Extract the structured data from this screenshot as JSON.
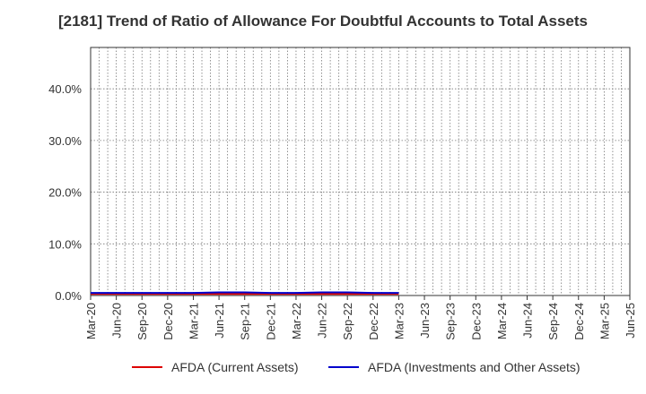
{
  "chart_data": {
    "type": "line",
    "title": "[2181]  Trend of Ratio of Allowance For Doubtful Accounts to Total Assets",
    "xlabel": "",
    "ylabel": "",
    "x_ticks": [
      "Mar-20",
      "Jun-20",
      "Sep-20",
      "Dec-20",
      "Mar-21",
      "Jun-21",
      "Sep-21",
      "Dec-21",
      "Mar-22",
      "Jun-22",
      "Sep-22",
      "Dec-22",
      "Mar-23",
      "Jun-23",
      "Sep-23",
      "Dec-23",
      "Mar-24",
      "Jun-24",
      "Sep-24",
      "Dec-24",
      "Mar-25",
      "Jun-25"
    ],
    "y_ticks": [
      "0.0%",
      "10.0%",
      "20.0%",
      "30.0%",
      "40.0%"
    ],
    "y_tick_values": [
      0,
      10,
      20,
      30,
      40
    ],
    "ylim": [
      0,
      48
    ],
    "grid": true,
    "legend_position": "bottom",
    "x": [
      "Mar-20",
      "Jun-20",
      "Sep-20",
      "Dec-20",
      "Mar-21",
      "Jun-21",
      "Sep-21",
      "Dec-21",
      "Mar-22",
      "Jun-22",
      "Sep-22",
      "Dec-22",
      "Mar-23"
    ],
    "series": [
      {
        "name": "AFDA (Current Assets)",
        "color": "#dd0000",
        "values": [
          0.3,
          0.3,
          0.3,
          0.3,
          0.3,
          0.3,
          0.3,
          0.3,
          0.3,
          0.3,
          0.3,
          0.3,
          0.3
        ]
      },
      {
        "name": "AFDA (Investments and Other Assets)",
        "color": "#0000cc",
        "values": [
          0.5,
          0.5,
          0.5,
          0.5,
          0.5,
          0.6,
          0.6,
          0.5,
          0.5,
          0.6,
          0.6,
          0.5,
          0.5
        ]
      }
    ]
  }
}
